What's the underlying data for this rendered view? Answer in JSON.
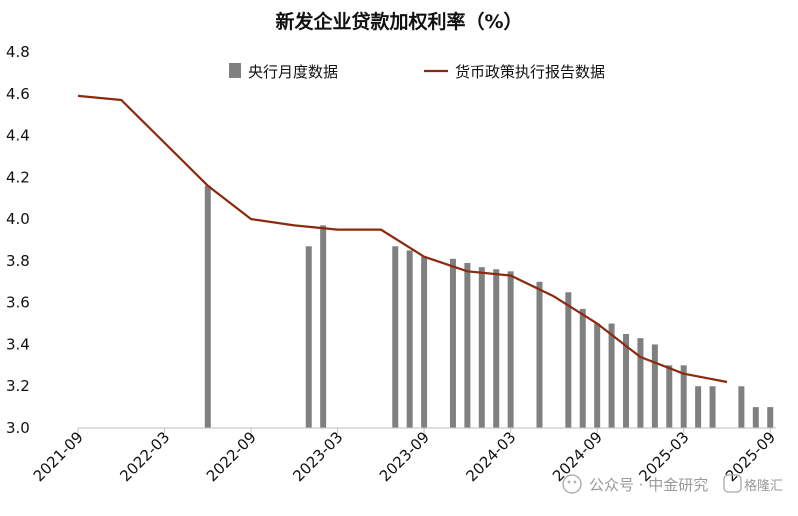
{
  "chart_data": {
    "type": "bar+line",
    "title": "新发企业贷款加权利率（%）",
    "xlabel": "",
    "ylabel": "",
    "ylim": [
      3.0,
      4.8
    ],
    "yticks": [
      "3.0",
      "3.2",
      "3.4",
      "3.6",
      "3.8",
      "4.0",
      "4.2",
      "4.4",
      "4.6",
      "4.8"
    ],
    "xticks": [
      "2021-09",
      "2022-03",
      "2022-09",
      "2023-03",
      "2023-09",
      "2024-03",
      "2024-09",
      "2025-03",
      "2025-09"
    ],
    "grid": false,
    "legend_position": "top",
    "bar_series": {
      "name": "央行月度数据",
      "color": "#808080",
      "points": [
        {
          "x": "2022-06",
          "y": 4.16
        },
        {
          "x": "2023-01",
          "y": 3.87
        },
        {
          "x": "2023-02",
          "y": 3.97
        },
        {
          "x": "2023-07",
          "y": 3.87
        },
        {
          "x": "2023-08",
          "y": 3.85
        },
        {
          "x": "2023-09",
          "y": 3.82
        },
        {
          "x": "2023-11",
          "y": 3.81
        },
        {
          "x": "2023-12",
          "y": 3.79
        },
        {
          "x": "2024-01",
          "y": 3.77
        },
        {
          "x": "2024-02",
          "y": 3.76
        },
        {
          "x": "2024-03",
          "y": 3.75
        },
        {
          "x": "2024-05",
          "y": 3.7
        },
        {
          "x": "2024-07",
          "y": 3.65
        },
        {
          "x": "2024-08",
          "y": 3.57
        },
        {
          "x": "2024-09",
          "y": 3.5
        },
        {
          "x": "2024-10",
          "y": 3.5
        },
        {
          "x": "2024-11",
          "y": 3.45
        },
        {
          "x": "2024-12",
          "y": 3.43
        },
        {
          "x": "2025-01",
          "y": 3.4
        },
        {
          "x": "2025-02",
          "y": 3.3
        },
        {
          "x": "2025-03",
          "y": 3.3
        },
        {
          "x": "2025-04",
          "y": 3.2
        },
        {
          "x": "2025-05",
          "y": 3.2
        },
        {
          "x": "2025-07",
          "y": 3.2
        },
        {
          "x": "2025-08",
          "y": 3.1
        },
        {
          "x": "2025-09",
          "y": 3.1
        }
      ]
    },
    "line_series": {
      "name": "货币政策执行报告数据",
      "color": "#8B2A0E",
      "points": [
        {
          "x": "2021-09",
          "y": 4.59
        },
        {
          "x": "2021-12",
          "y": 4.57
        },
        {
          "x": "2022-06",
          "y": 4.16
        },
        {
          "x": "2022-09",
          "y": 4.0
        },
        {
          "x": "2022-12",
          "y": 3.97
        },
        {
          "x": "2023-03",
          "y": 3.95
        },
        {
          "x": "2023-06",
          "y": 3.95
        },
        {
          "x": "2023-09",
          "y": 3.82
        },
        {
          "x": "2023-12",
          "y": 3.75
        },
        {
          "x": "2024-03",
          "y": 3.73
        },
        {
          "x": "2024-06",
          "y": 3.63
        },
        {
          "x": "2024-09",
          "y": 3.5
        },
        {
          "x": "2024-12",
          "y": 3.34
        },
        {
          "x": "2025-03",
          "y": 3.26
        },
        {
          "x": "2025-06",
          "y": 3.22
        }
      ]
    }
  },
  "watermark": {
    "text": "公众号 · 中金研究"
  },
  "badge": {
    "text": "格隆汇"
  }
}
